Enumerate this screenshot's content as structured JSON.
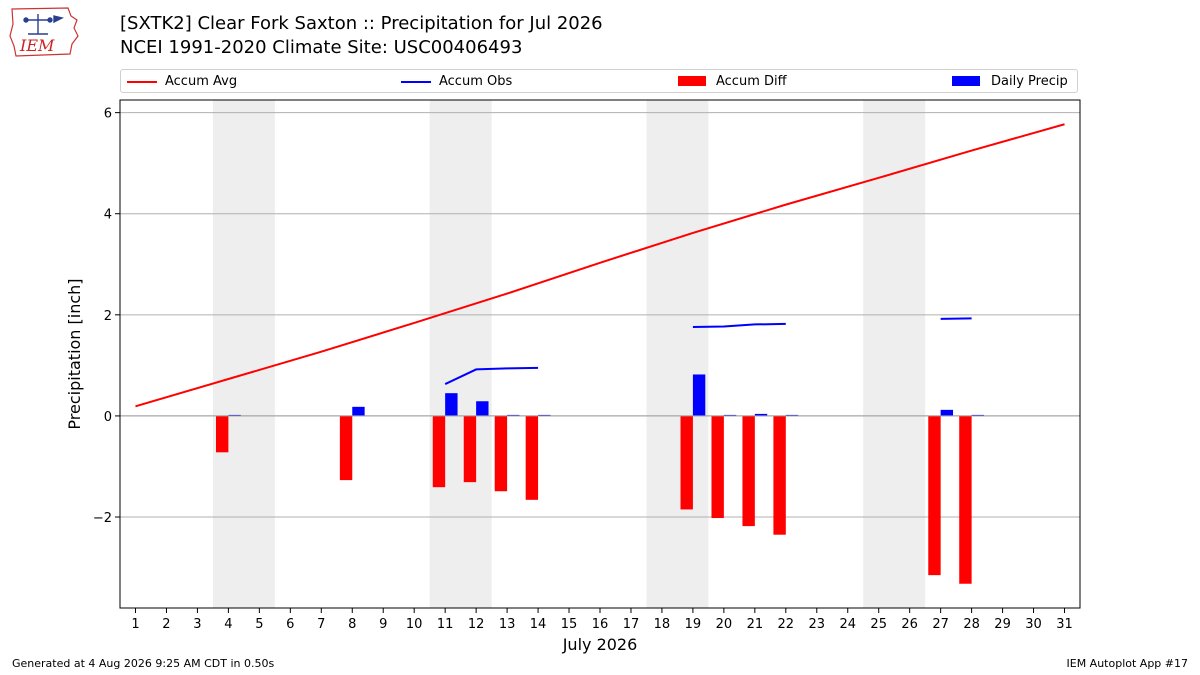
{
  "header": {
    "title_line1": "[SXTK2] Clear Fork  Saxton :: Precipitation for Jul 2026",
    "title_line2": "NCEI 1991-2020 Climate Site: USC00406493",
    "logo_text": "IEM"
  },
  "footer": {
    "left": "Generated at 4 Aug 2026 9:25 AM CDT in 0.50s",
    "right": "IEM Autoplot App #17"
  },
  "colors": {
    "accum_avg": "#ff0000",
    "accum_obs": "#0000ff",
    "accum_diff": "#ff0000",
    "daily_precip": "#0000ff",
    "weekend_shade": "#eeeeee"
  },
  "chart_data": {
    "type": "bar",
    "xlabel": "July 2026",
    "ylabel": "Precipitation [inch]",
    "xlim": [
      0.5,
      31.5
    ],
    "ylim": [
      -3.8,
      6.25
    ],
    "yticks": [
      -2,
      0,
      2,
      4,
      6
    ],
    "ytick_labels": [
      "−2",
      "0",
      "2",
      "4",
      "6"
    ],
    "xticks": [
      1,
      2,
      3,
      4,
      5,
      6,
      7,
      8,
      9,
      10,
      11,
      12,
      13,
      14,
      15,
      16,
      17,
      18,
      19,
      20,
      21,
      22,
      23,
      24,
      25,
      26,
      27,
      28,
      29,
      30,
      31
    ],
    "grid": "y",
    "legend_position": "top",
    "legend": {
      "accum_avg": "Accum Avg",
      "accum_obs": "Accum Obs",
      "accum_diff": "Accum Diff",
      "daily_precip": "Daily Precip"
    },
    "shaded_days": [
      [
        4,
        5
      ],
      [
        11,
        12
      ],
      [
        18,
        19
      ],
      [
        25,
        26
      ]
    ],
    "accum_avg": {
      "days": [
        1,
        4,
        7,
        10,
        13,
        16,
        19,
        22,
        25,
        28,
        31
      ],
      "values": [
        0.19,
        0.73,
        1.27,
        1.84,
        2.42,
        3.03,
        3.62,
        4.18,
        4.71,
        5.25,
        5.77
      ]
    },
    "accum_obs_segments": [
      {
        "days": [
          4
        ],
        "values": [
          0.02
        ]
      },
      {
        "days": [
          8
        ],
        "values": [
          0.18
        ]
      },
      {
        "days": [
          11,
          12,
          13,
          14
        ],
        "values": [
          0.63,
          0.92,
          0.94,
          0.95
        ]
      },
      {
        "days": [
          19,
          20,
          21,
          22
        ],
        "values": [
          1.76,
          1.77,
          1.81,
          1.82
        ]
      },
      {
        "days": [
          27,
          28
        ],
        "values": [
          1.92,
          1.93
        ]
      }
    ],
    "accum_diff": {
      "days": [
        4,
        8,
        11,
        12,
        13,
        14,
        19,
        20,
        21,
        22,
        27,
        28
      ],
      "values": [
        -0.72,
        -1.27,
        -1.41,
        -1.31,
        -1.49,
        -1.66,
        -1.85,
        -2.02,
        -2.18,
        -2.35,
        -3.15,
        -3.32
      ]
    },
    "daily_precip": {
      "days": [
        4,
        8,
        11,
        12,
        13,
        14,
        19,
        20,
        21,
        22,
        27,
        28
      ],
      "values": [
        0.02,
        0.18,
        0.45,
        0.29,
        0.02,
        0.02,
        0.82,
        0.01,
        0.04,
        0.02,
        0.12,
        0.02
      ]
    }
  }
}
